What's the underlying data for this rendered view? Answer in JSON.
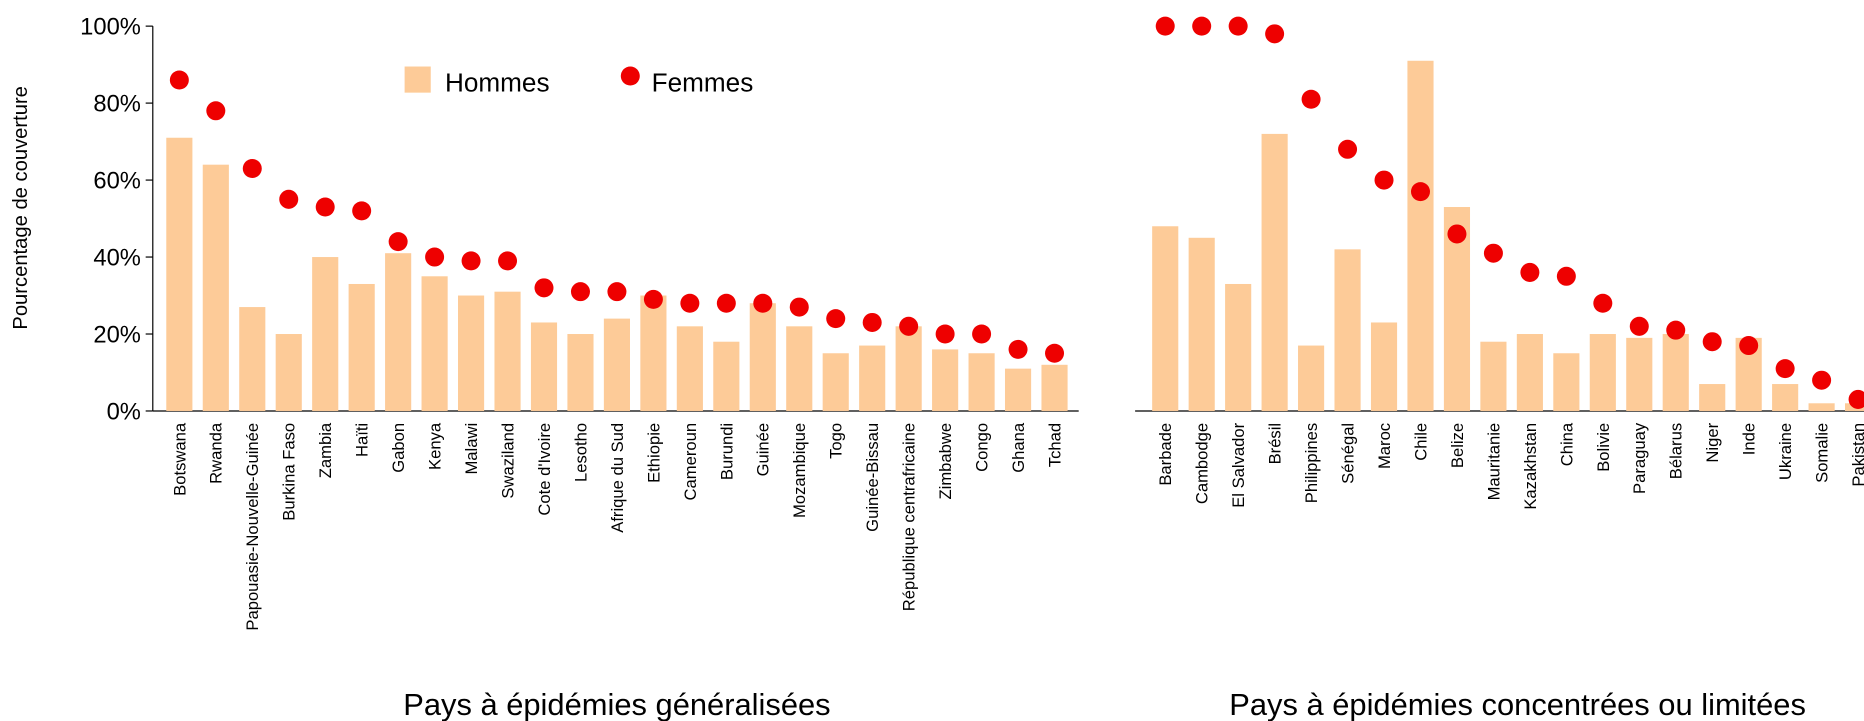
{
  "chart_data": {
    "type": "bar",
    "ylabel": "Pourcentage de couverture",
    "ylim": [
      0,
      100
    ],
    "yticks": [
      {
        "value": 0,
        "label": "0%"
      },
      {
        "value": 20,
        "label": "20%"
      },
      {
        "value": 40,
        "label": "40%"
      },
      {
        "value": 60,
        "label": "60%"
      },
      {
        "value": 80,
        "label": "80%"
      },
      {
        "value": 100,
        "label": "100%"
      }
    ],
    "series": [
      {
        "name": "Hommes",
        "color": "#fdcb98",
        "kind": "bar"
      },
      {
        "name": "Femmes",
        "color": "#ee0000",
        "kind": "dot"
      }
    ],
    "groups": [
      {
        "xlabel": "Pays à épidémies généralisées",
        "categories": [
          "Botswana",
          "Rwanda",
          "Papouasie-Nouvelle-Guinée",
          "Burkina Faso",
          "Zambia",
          "Haïti",
          "Gabon",
          "Kenya",
          "Malawi",
          "Swaziland",
          "Cote d'Ivoire",
          "Lesotho",
          "Afrique du Sud",
          "Ethiopie",
          "Cameroun",
          "Burundi",
          "Guinée",
          "Mozambique",
          "Togo",
          "Guinée-Bissau",
          "République centrafricaine",
          "Zimbabwe",
          "Congo",
          "Ghana",
          "Tchad"
        ],
        "series": [
          {
            "values": [
              71,
              64,
              27,
              20,
              40,
              33,
              41,
              35,
              30,
              31,
              23,
              20,
              24,
              30,
              22,
              18,
              28,
              22,
              15,
              17,
              22,
              16,
              15,
              11,
              12
            ]
          },
          {
            "values": [
              86,
              78,
              63,
              55,
              53,
              52,
              44,
              40,
              39,
              39,
              32,
              31,
              31,
              29,
              28,
              28,
              28,
              27,
              24,
              23,
              22,
              20,
              20,
              16,
              15
            ]
          }
        ]
      },
      {
        "xlabel": "Pays à épidémies concentrées ou limitées",
        "categories": [
          "Barbade",
          "Cambodge",
          "El Salvador",
          "Brésil",
          "Philippines",
          "Sénégal",
          "Maroc",
          "Chile",
          "Belize",
          "Mauritanie",
          "Kazakhstan",
          "China",
          "Bolivie",
          "Paraguay",
          "Bélarus",
          "Niger",
          "Inde",
          "Ukraine",
          "Somalie",
          "Pakistan"
        ],
        "series": [
          {
            "values": [
              48,
              45,
              33,
              72,
              17,
              42,
              23,
              91,
              53,
              18,
              20,
              15,
              20,
              19,
              20,
              7,
              19,
              7,
              2,
              2
            ]
          },
          {
            "values": [
              100,
              100,
              100,
              98,
              81,
              68,
              60,
              57,
              46,
              41,
              36,
              35,
              28,
              22,
              21,
              18,
              17,
              11,
              8,
              3
            ]
          }
        ]
      }
    ]
  }
}
